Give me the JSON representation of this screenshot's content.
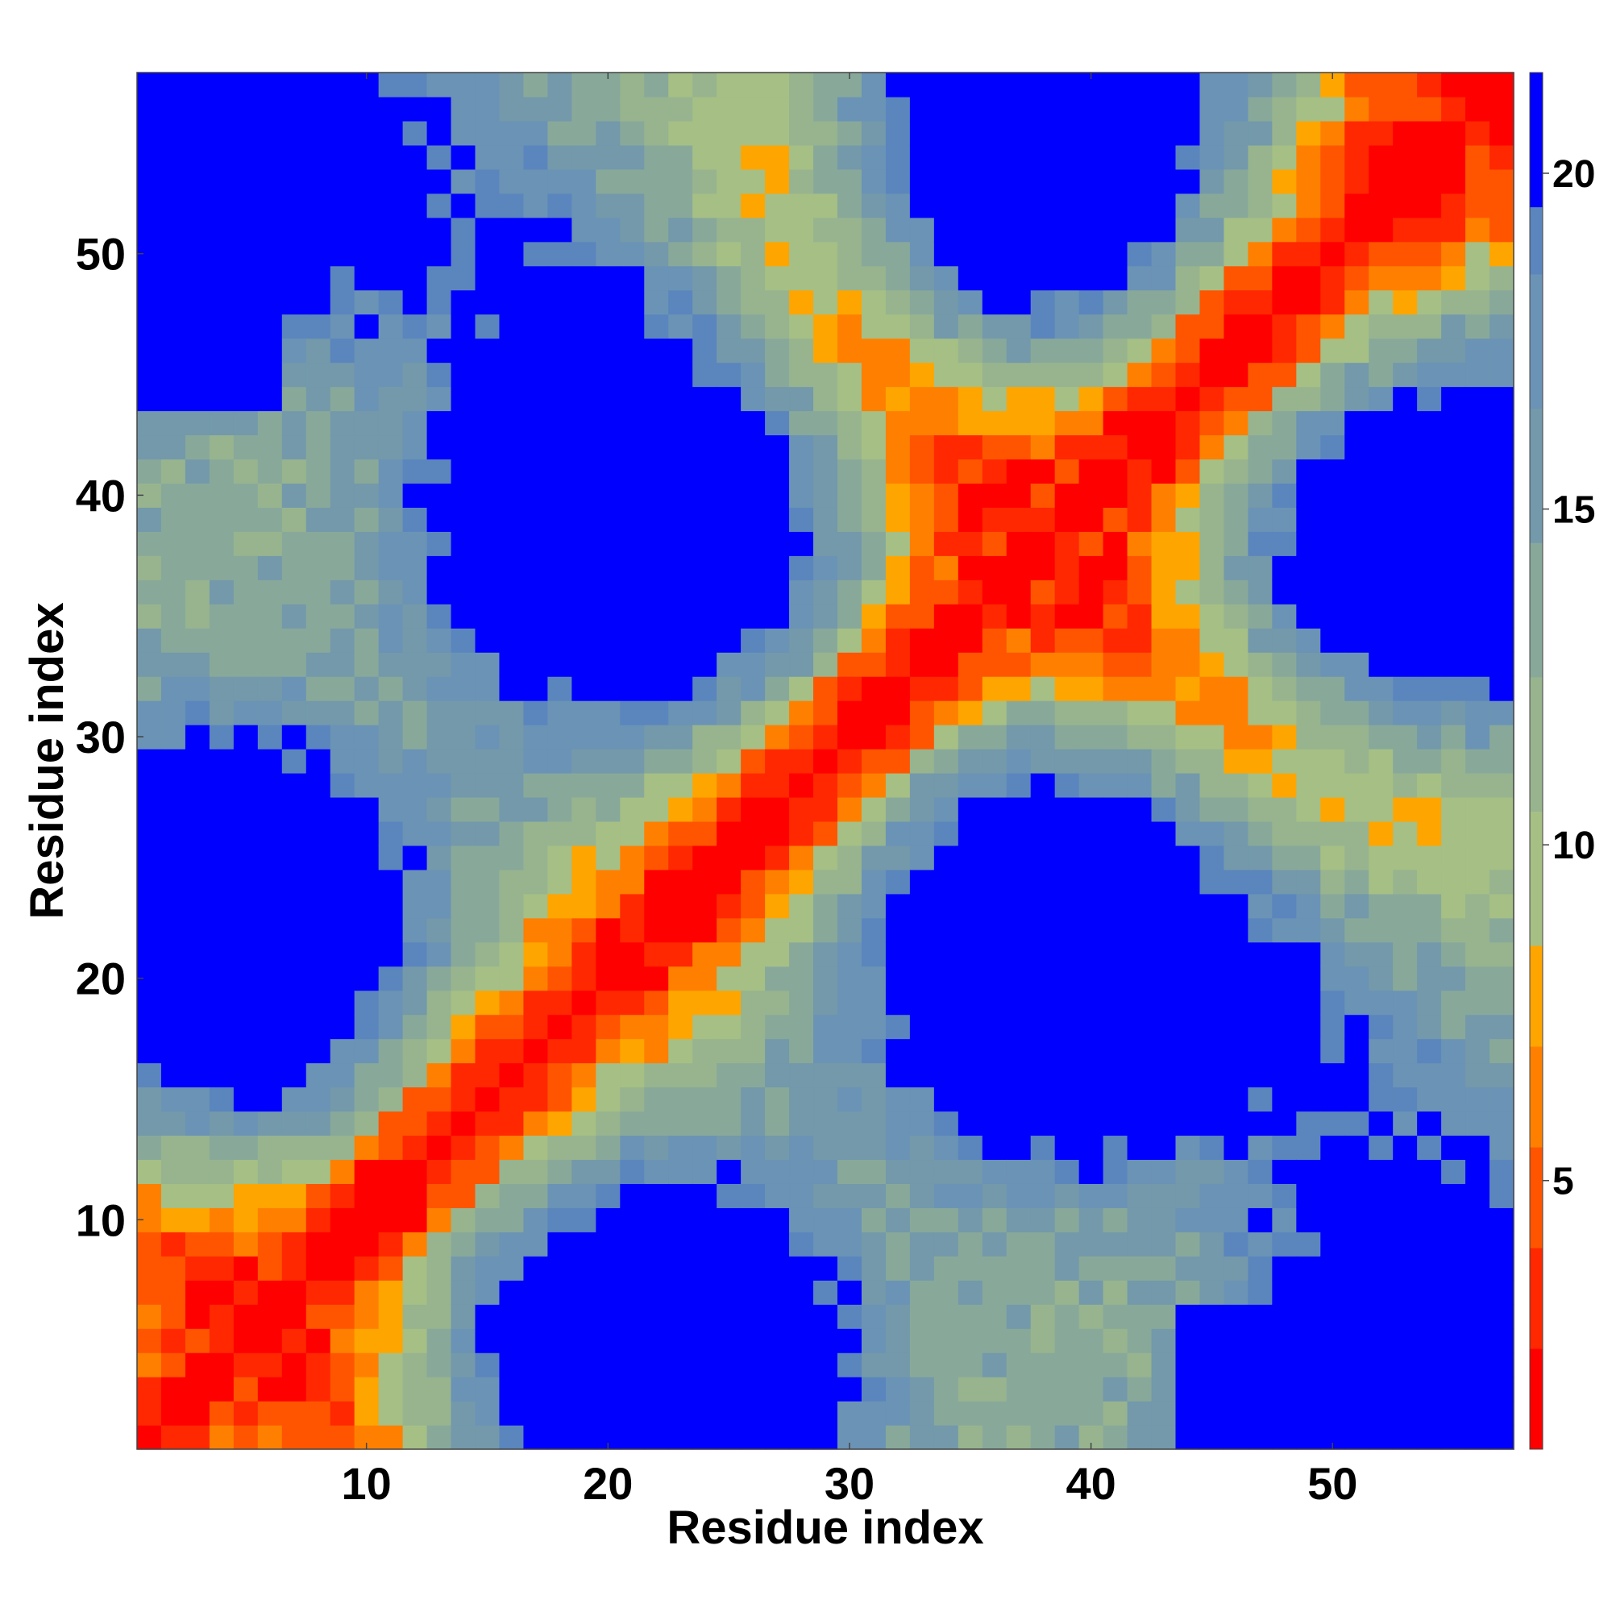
{
  "chart_data": {
    "type": "heatmap",
    "xlabel": "Residue index",
    "ylabel": "Residue index",
    "xlim": [
      0.5,
      57.5
    ],
    "ylim": [
      0.5,
      57.5
    ],
    "n_residues": 57,
    "x_ticks": [
      "10",
      "20",
      "30",
      "40",
      "50"
    ],
    "y_ticks": [
      "10",
      "20",
      "30",
      "40",
      "50"
    ],
    "colorbar": {
      "ticks": [
        "5",
        "10",
        "15",
        "20"
      ],
      "range": [
        1.0,
        21.5
      ],
      "bins": [
        {
          "to": 2.5,
          "color": "#ff0000"
        },
        {
          "to": 4.0,
          "color": "#ff2800"
        },
        {
          "to": 5.5,
          "color": "#ff5500"
        },
        {
          "to": 7.0,
          "color": "#ff8000"
        },
        {
          "to": 8.5,
          "color": "#ffa500"
        },
        {
          "to": 10.5,
          "color": "#a6bf85"
        },
        {
          "to": 12.5,
          "color": "#97b48f"
        },
        {
          "to": 14.5,
          "color": "#88a99a"
        },
        {
          "to": 16.5,
          "color": "#7399ab"
        },
        {
          "to": 18.5,
          "color": "#6b93b5"
        },
        {
          "to": 19.5,
          "color": "#5b86bd"
        },
        {
          "to": 21.5,
          "color": "#0000ff"
        }
      ]
    },
    "distance_model": "Smooth pairwise distance map (Angstrom) between residues i and j, symmetric, with strong red diagonal (<3 A), orange near-diagonal contacts, blue-grey background and saturated blue far pairs (>19.5 A)."
  }
}
